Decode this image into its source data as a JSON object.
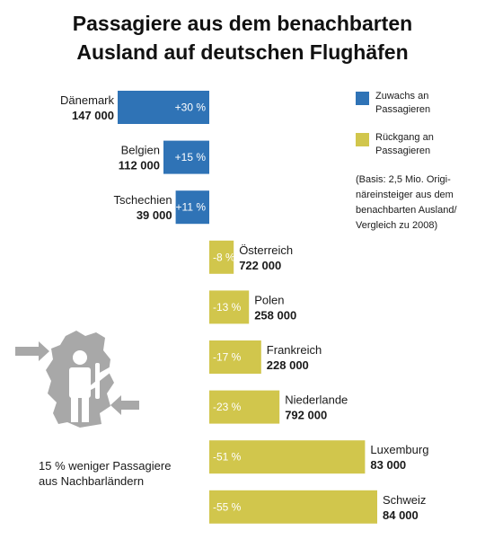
{
  "title_lines": [
    "Passagiere aus dem benachbarten",
    "Ausland auf deutschen Flughäfen"
  ],
  "legend": {
    "increase_label": "Zuwachs an Passagieren",
    "decrease_label": "Rückgang an Passagieren",
    "note": "(Basis: 2,5 Mio. Origi- näreinsteiger aus dem benachbarten Ausland/ Vergleich zu 2008)"
  },
  "colors": {
    "increase": "#2f73b6",
    "decrease": "#d1c64c",
    "map": "#a8a8a8"
  },
  "side_note": "15 % weniger Passagiere aus Nachbarländern",
  "chart_data": {
    "type": "bar",
    "orientation": "horizontal-diverging",
    "categories": [
      "Dänemark",
      "Belgien",
      "Tschechien",
      "Österreich",
      "Polen",
      "Frankreich",
      "Niederlande",
      "Luxemburg",
      "Schweiz"
    ],
    "change_percent": [
      30,
      15,
      11,
      -8,
      -13,
      -17,
      -23,
      -51,
      -55
    ],
    "change_labels": [
      "+30 %",
      "+15 %",
      "+11 %",
      "-8 %",
      "-13 %",
      "-17 %",
      "-23 %",
      "-51 %",
      "-55 %"
    ],
    "passengers": [
      147000,
      112000,
      39000,
      722000,
      258000,
      228000,
      792000,
      83000,
      84000
    ],
    "passenger_labels": [
      "147 000",
      "112 000",
      "39 000",
      "722 000",
      "258 000",
      "228 000",
      "792 000",
      "83 000",
      "84 000"
    ]
  }
}
